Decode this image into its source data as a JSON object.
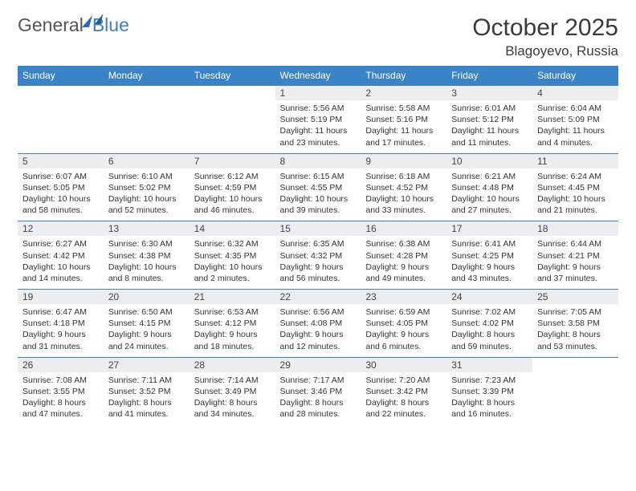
{
  "brand": {
    "part1": "General",
    "part2": "Blue"
  },
  "title": "October 2025",
  "location": "Blagoyevo, Russia",
  "columns": [
    "Sunday",
    "Monday",
    "Tuesday",
    "Wednesday",
    "Thursday",
    "Friday",
    "Saturday"
  ],
  "colors": {
    "header_bg": "#3b83c7",
    "header_text": "#ffffff",
    "daynum_bg": "#ecedef",
    "rule": "#3b83c7",
    "brand_blue": "#3b7fc4"
  },
  "weeks": [
    [
      null,
      null,
      null,
      {
        "n": "1",
        "sr": "5:56 AM",
        "ss": "5:19 PM",
        "dl": "11 hours and 23 minutes."
      },
      {
        "n": "2",
        "sr": "5:58 AM",
        "ss": "5:16 PM",
        "dl": "11 hours and 17 minutes."
      },
      {
        "n": "3",
        "sr": "6:01 AM",
        "ss": "5:12 PM",
        "dl": "11 hours and 11 minutes."
      },
      {
        "n": "4",
        "sr": "6:04 AM",
        "ss": "5:09 PM",
        "dl": "11 hours and 4 minutes."
      }
    ],
    [
      {
        "n": "5",
        "sr": "6:07 AM",
        "ss": "5:05 PM",
        "dl": "10 hours and 58 minutes."
      },
      {
        "n": "6",
        "sr": "6:10 AM",
        "ss": "5:02 PM",
        "dl": "10 hours and 52 minutes."
      },
      {
        "n": "7",
        "sr": "6:12 AM",
        "ss": "4:59 PM",
        "dl": "10 hours and 46 minutes."
      },
      {
        "n": "8",
        "sr": "6:15 AM",
        "ss": "4:55 PM",
        "dl": "10 hours and 39 minutes."
      },
      {
        "n": "9",
        "sr": "6:18 AM",
        "ss": "4:52 PM",
        "dl": "10 hours and 33 minutes."
      },
      {
        "n": "10",
        "sr": "6:21 AM",
        "ss": "4:48 PM",
        "dl": "10 hours and 27 minutes."
      },
      {
        "n": "11",
        "sr": "6:24 AM",
        "ss": "4:45 PM",
        "dl": "10 hours and 21 minutes."
      }
    ],
    [
      {
        "n": "12",
        "sr": "6:27 AM",
        "ss": "4:42 PM",
        "dl": "10 hours and 14 minutes."
      },
      {
        "n": "13",
        "sr": "6:30 AM",
        "ss": "4:38 PM",
        "dl": "10 hours and 8 minutes."
      },
      {
        "n": "14",
        "sr": "6:32 AM",
        "ss": "4:35 PM",
        "dl": "10 hours and 2 minutes."
      },
      {
        "n": "15",
        "sr": "6:35 AM",
        "ss": "4:32 PM",
        "dl": "9 hours and 56 minutes."
      },
      {
        "n": "16",
        "sr": "6:38 AM",
        "ss": "4:28 PM",
        "dl": "9 hours and 49 minutes."
      },
      {
        "n": "17",
        "sr": "6:41 AM",
        "ss": "4:25 PM",
        "dl": "9 hours and 43 minutes."
      },
      {
        "n": "18",
        "sr": "6:44 AM",
        "ss": "4:21 PM",
        "dl": "9 hours and 37 minutes."
      }
    ],
    [
      {
        "n": "19",
        "sr": "6:47 AM",
        "ss": "4:18 PM",
        "dl": "9 hours and 31 minutes."
      },
      {
        "n": "20",
        "sr": "6:50 AM",
        "ss": "4:15 PM",
        "dl": "9 hours and 24 minutes."
      },
      {
        "n": "21",
        "sr": "6:53 AM",
        "ss": "4:12 PM",
        "dl": "9 hours and 18 minutes."
      },
      {
        "n": "22",
        "sr": "6:56 AM",
        "ss": "4:08 PM",
        "dl": "9 hours and 12 minutes."
      },
      {
        "n": "23",
        "sr": "6:59 AM",
        "ss": "4:05 PM",
        "dl": "9 hours and 6 minutes."
      },
      {
        "n": "24",
        "sr": "7:02 AM",
        "ss": "4:02 PM",
        "dl": "8 hours and 59 minutes."
      },
      {
        "n": "25",
        "sr": "7:05 AM",
        "ss": "3:58 PM",
        "dl": "8 hours and 53 minutes."
      }
    ],
    [
      {
        "n": "26",
        "sr": "7:08 AM",
        "ss": "3:55 PM",
        "dl": "8 hours and 47 minutes."
      },
      {
        "n": "27",
        "sr": "7:11 AM",
        "ss": "3:52 PM",
        "dl": "8 hours and 41 minutes."
      },
      {
        "n": "28",
        "sr": "7:14 AM",
        "ss": "3:49 PM",
        "dl": "8 hours and 34 minutes."
      },
      {
        "n": "29",
        "sr": "7:17 AM",
        "ss": "3:46 PM",
        "dl": "8 hours and 28 minutes."
      },
      {
        "n": "30",
        "sr": "7:20 AM",
        "ss": "3:42 PM",
        "dl": "8 hours and 22 minutes."
      },
      {
        "n": "31",
        "sr": "7:23 AM",
        "ss": "3:39 PM",
        "dl": "8 hours and 16 minutes."
      },
      null
    ]
  ],
  "labels": {
    "sunrise": "Sunrise:",
    "sunset": "Sunset:",
    "daylight": "Daylight:"
  }
}
